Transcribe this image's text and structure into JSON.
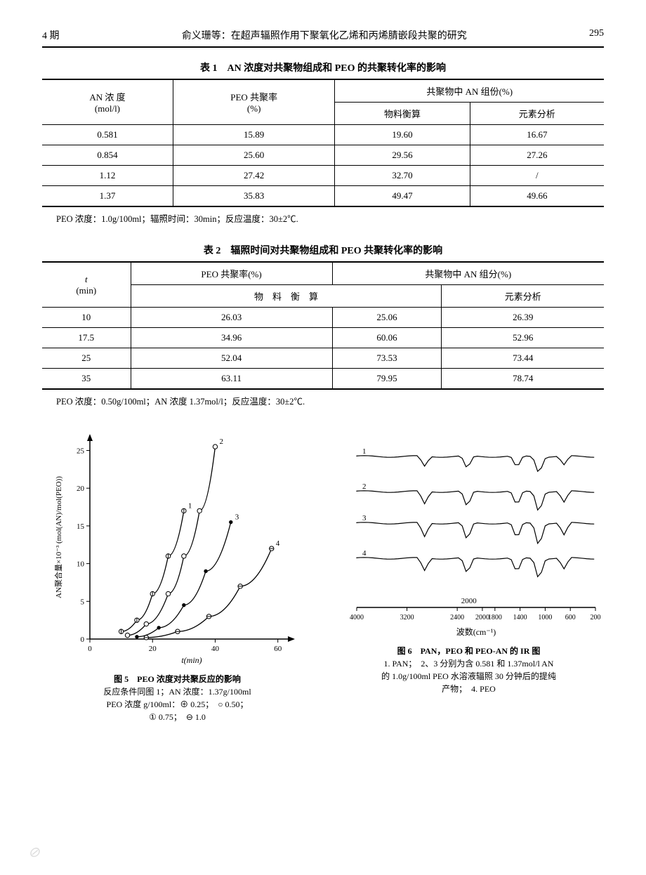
{
  "header": {
    "issue": "4 期",
    "running_title": "俞义珊等：在超声辐照作用下聚氧化乙烯和丙烯腈嵌段共聚的研究",
    "page": "295"
  },
  "table1": {
    "title": "表 1　AN 浓度对共聚物组成和 PEO 的共聚转化率的影响",
    "col_headers": {
      "col1_line1": "AN 浓 度",
      "col1_line2": "(mol/l)",
      "col2_line1": "PEO 共聚率",
      "col2_line2": "(%)",
      "group_header": "共聚物中 AN 组份(%)",
      "sub1": "物料衡算",
      "sub2": "元素分析"
    },
    "rows": [
      {
        "c1": "0.581",
        "c2": "15.89",
        "c3": "19.60",
        "c4": "16.67"
      },
      {
        "c1": "0.854",
        "c2": "25.60",
        "c3": "29.56",
        "c4": "27.26"
      },
      {
        "c1": "1.12",
        "c2": "27.42",
        "c3": "32.70",
        "c4": "/"
      },
      {
        "c1": "1.37",
        "c2": "35.83",
        "c3": "49.47",
        "c4": "49.66"
      }
    ],
    "note": "PEO 浓度：1.0g/100ml；辐照时间：30min；反应温度：30±2℃."
  },
  "table2": {
    "title": "表 2　辐照时间对共聚物组成和 PEO 共聚转化率的影响",
    "col_headers": {
      "col1_line1": "t",
      "col1_line2": "(min)",
      "col2": "PEO 共聚率(%)",
      "group_header": "共聚物中 AN 组分(%)",
      "sub_mid": "物　料　衡　算",
      "sub_right": "元素分析"
    },
    "rows": [
      {
        "c1": "10",
        "c2": "26.03",
        "c3": "25.06",
        "c4": "26.39"
      },
      {
        "c1": "17.5",
        "c2": "34.96",
        "c3": "60.06",
        "c4": "52.96"
      },
      {
        "c1": "25",
        "c2": "52.04",
        "c3": "73.53",
        "c4": "73.44"
      },
      {
        "c1": "35",
        "c2": "63.11",
        "c3": "79.95",
        "c4": "78.74"
      }
    ],
    "note": "PEO 浓度：0.50g/100ml；AN 浓度 1.37mol/l；反应温度：30±2℃."
  },
  "fig5": {
    "title": "图 5　PEO 浓度对共聚反应的影响",
    "caption_lines": [
      "反应条件同图 1；AN 浓度：1.37g/100ml",
      "PEO 浓度 g/100ml：⊕ 0.25；　○ 0.50；",
      "① 0.75；　⊖ 1.0"
    ],
    "x_label": "t(min)",
    "y_label": "AN聚合量×10⁻³ (mol(AN)/mol(PEO))",
    "x_ticks": [
      0,
      20,
      40,
      60
    ],
    "y_ticks": [
      0,
      5,
      10,
      15,
      20,
      25
    ],
    "xlim": [
      0,
      65
    ],
    "ylim": [
      0,
      27
    ],
    "curve_labels": [
      "1",
      "2",
      "3",
      "4"
    ],
    "series": {
      "1": {
        "marker": "circle-vbar",
        "points": [
          [
            10,
            1
          ],
          [
            15,
            2.5
          ],
          [
            20,
            6
          ],
          [
            25,
            11
          ],
          [
            30,
            17
          ]
        ]
      },
      "2": {
        "marker": "circle",
        "points": [
          [
            12,
            0.5
          ],
          [
            18,
            2
          ],
          [
            25,
            6
          ],
          [
            30,
            11
          ],
          [
            35,
            17
          ],
          [
            40,
            25.5
          ]
        ]
      },
      "3": {
        "marker": "dot",
        "points": [
          [
            15,
            0.3
          ],
          [
            22,
            1.5
          ],
          [
            30,
            4.5
          ],
          [
            37,
            9
          ],
          [
            45,
            15.5
          ]
        ]
      },
      "4": {
        "marker": "circle-hbar",
        "points": [
          [
            18,
            0.2
          ],
          [
            28,
            1
          ],
          [
            38,
            3
          ],
          [
            48,
            7
          ],
          [
            58,
            12
          ]
        ]
      }
    },
    "colors": {
      "line": "#000000",
      "axis": "#000000",
      "bg": "#ffffff"
    },
    "line_width": 1.3,
    "marker_size": 3.2
  },
  "fig6": {
    "title": "图 6　PAN，PEO 和 PEO-AN 的 IR 图",
    "caption_lines": [
      "1. PAN；　2、3 分别为含 0.581 和 1.37mol/l AN",
      "的 1.0g/100ml PEO 水溶液辐照 30 分钟后的提纯",
      "产物；　4. PEO"
    ],
    "x_label": "波数(cm⁻¹)",
    "x_ticks": [
      4000,
      3200,
      2400,
      2000,
      1800,
      1400,
      1000,
      600,
      200
    ],
    "trace_labels": [
      "1",
      "2",
      "3",
      "4"
    ],
    "colors": {
      "line": "#000000",
      "axis": "#000000",
      "bg": "#ffffff"
    },
    "line_width": 1.2
  }
}
